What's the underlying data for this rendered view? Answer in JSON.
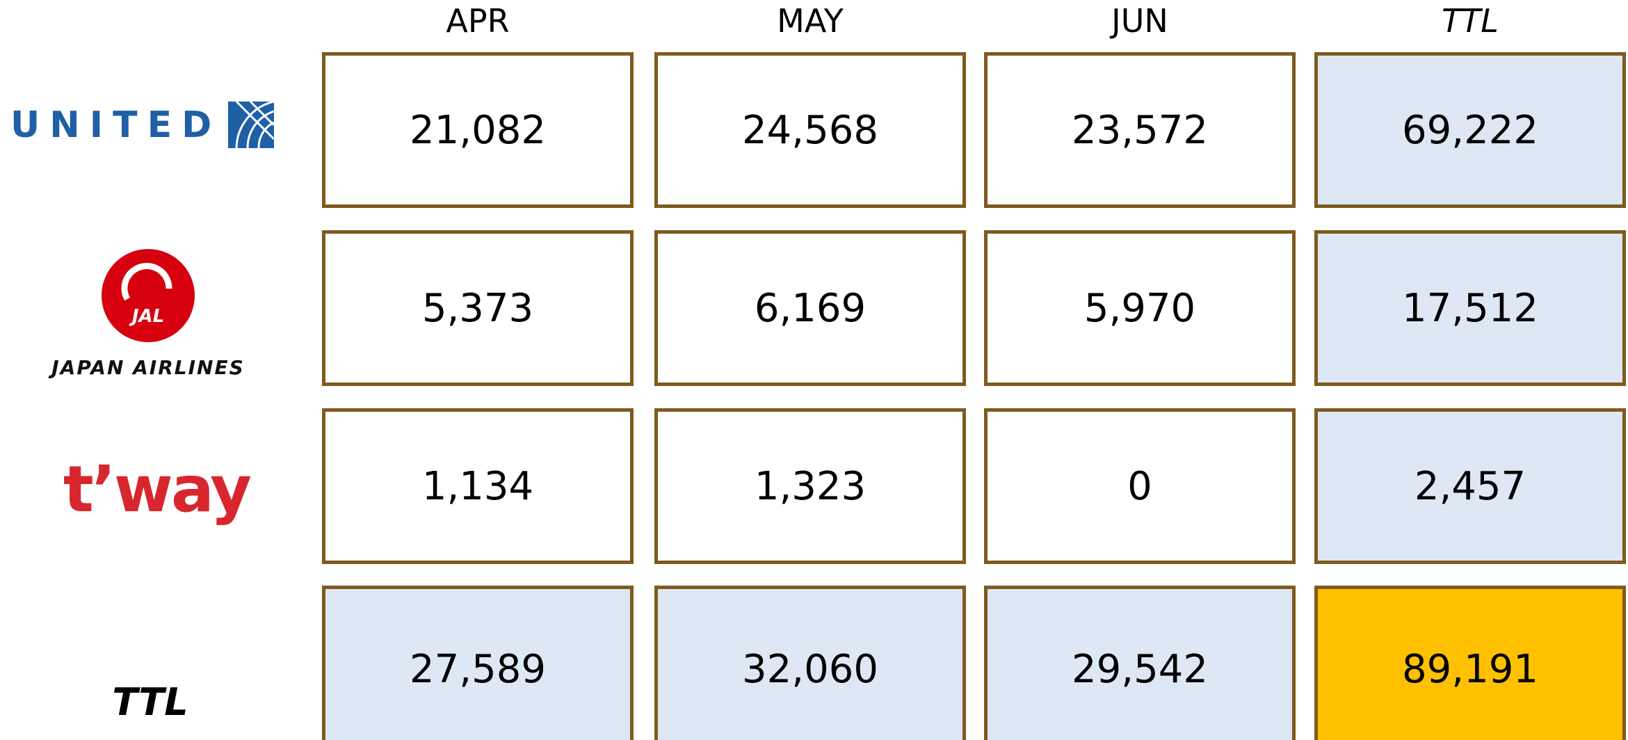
{
  "header": {
    "columns": [
      "APR",
      "MAY",
      "JUN",
      "TTL"
    ]
  },
  "table": {
    "rows": [
      {
        "airline": "UNITED",
        "values": [
          "21,082",
          "24,568",
          "23,572",
          "69,222"
        ]
      },
      {
        "airline": "JAPAN AIRLINES",
        "logo_text": "JAL",
        "values": [
          "5,373",
          "6,169",
          "5,970",
          "17,512"
        ]
      },
      {
        "airline": "t’way",
        "values": [
          "1,134",
          "1,323",
          "0",
          "2,457"
        ]
      },
      {
        "airline": "TTL",
        "values": [
          "27,589",
          "32,060",
          "29,542",
          "89,191"
        ]
      }
    ]
  }
}
